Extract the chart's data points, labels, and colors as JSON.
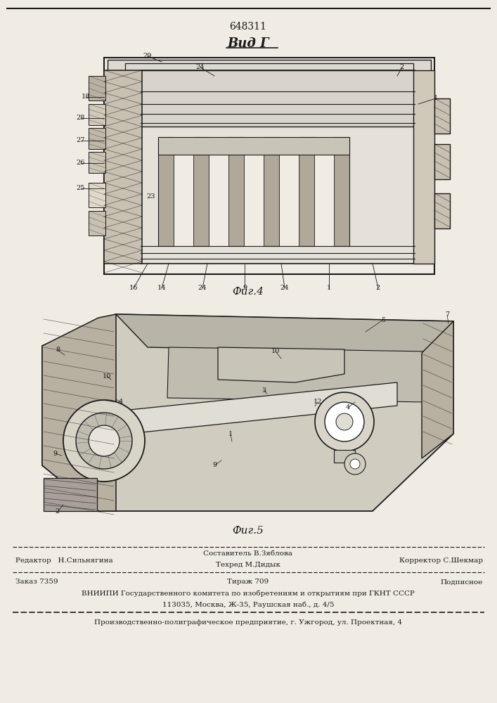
{
  "patent_number": "648311",
  "view_label": "Вид Г",
  "fig4_label": "Фиг.4",
  "fig5_label": "Фиг.5",
  "bg_color": "#f0ece4",
  "line_color": "#1a1a1a",
  "footer": {
    "line1_left": "Редактор   Н.Сильнягина",
    "line1_center_top": "Составитель В.Зяблова",
    "line1_center_bot": "Техред М.Дидык",
    "line1_right": "Корректор С.Шекмар",
    "line2_left": "Заказ 7359",
    "line2_center": "Тираж 709",
    "line2_right": "Подписное",
    "line3": "ВНИИПИ Государственного комитета по изобретениям и открытиям при ГКНТ СССР",
    "line4": "113035, Москва, Ж-35, Раушская наб., д. 4/5",
    "line5": "Производственно-полиграфическое предприятие, г. Ужгород, ул. Проектная, 4"
  }
}
